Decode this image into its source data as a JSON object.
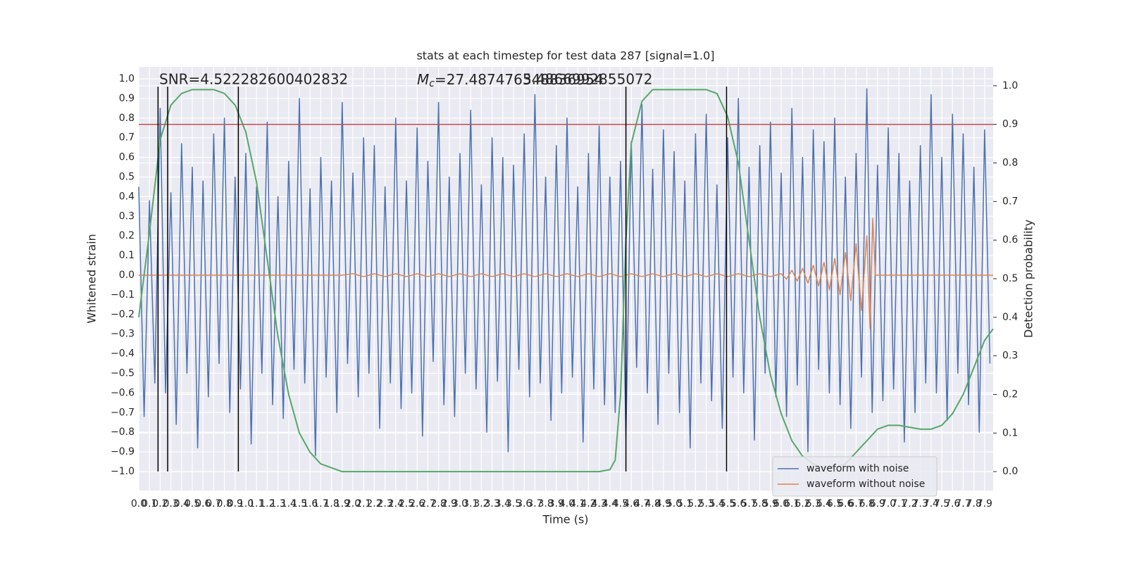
{
  "chart_data": {
    "type": "line",
    "title": "stats at each timestep for test data 287 [signal=1.0]",
    "xlabel": "Time (s)",
    "ylabel": "Whitened strain",
    "y2label": "Detection probability",
    "xlim": [
      0,
      7.98
    ],
    "ylim": [
      -1.097,
      1.061
    ],
    "y2lim": [
      -0.049,
      1.049
    ],
    "grid": true,
    "legend": "lower right",
    "xticks": [
      {
        "value": 0,
        "label": "0.0"
      },
      0.1,
      0.2,
      0.3,
      0.4,
      0.5,
      0.6,
      0.7,
      0.8,
      0.9,
      {
        "value": 1,
        "label": "1.0"
      },
      1.1,
      1.2,
      1.3,
      1.4,
      1.5,
      1.6,
      1.7,
      1.8,
      1.9,
      {
        "value": 2,
        "label": "2.0"
      },
      2.1,
      2.2,
      2.3,
      2.4,
      2.5,
      2.6,
      2.7,
      2.8,
      2.9,
      {
        "value": 3,
        "label": "3.0"
      },
      3.1,
      3.2,
      3.3,
      3.4,
      3.5,
      3.6,
      3.7,
      3.8,
      3.9,
      {
        "value": 4,
        "label": "4.0"
      },
      4.1,
      4.2,
      4.3,
      4.4,
      4.5,
      4.6,
      4.7,
      4.8,
      4.9,
      {
        "value": 5,
        "label": "5.0"
      },
      5.1,
      5.2,
      5.3,
      5.4,
      5.5,
      5.6,
      5.7,
      5.8,
      5.9,
      {
        "value": 6,
        "label": "6.0"
      },
      6.1,
      6.2,
      6.3,
      6.4,
      6.5,
      6.6,
      6.7,
      6.8,
      6.9,
      {
        "value": 7,
        "label": "7.0"
      },
      7.1,
      7.2,
      7.3,
      7.4,
      7.5,
      7.6,
      7.7,
      7.8,
      7.9
    ],
    "yticks": [
      {
        "value": -1,
        "label": "−1.0"
      },
      {
        "value": -0.9,
        "label": "−0.9"
      },
      {
        "value": -0.8,
        "label": "−0.8"
      },
      {
        "value": -0.7,
        "label": "−0.7"
      },
      {
        "value": -0.6,
        "label": "−0.6"
      },
      {
        "value": -0.5,
        "label": "−0.5"
      },
      {
        "value": -0.4,
        "label": "−0.4"
      },
      {
        "value": -0.3,
        "label": "−0.3"
      },
      {
        "value": -0.2,
        "label": "−0.2"
      },
      {
        "value": -0.1,
        "label": "−0.1"
      },
      {
        "value": 0,
        "label": "0.0"
      },
      0.1,
      0.2,
      0.3,
      0.4,
      0.5,
      0.6,
      0.7,
      0.8,
      0.9,
      {
        "value": 1,
        "label": "1.0"
      }
    ],
    "y2ticks": [
      {
        "value": 0,
        "label": "0.0"
      },
      0.1,
      0.2,
      0.3,
      0.4,
      0.5,
      0.6,
      0.7,
      0.8,
      0.9,
      {
        "value": 1,
        "label": "1.0"
      }
    ],
    "series": [
      {
        "name": "waveform with noise",
        "color": "#4c72b0",
        "x": [
          0,
          0.05,
          0.1,
          0.15,
          0.2,
          0.25,
          0.3,
          0.35,
          0.4,
          0.45,
          0.5,
          0.55,
          0.6,
          0.65,
          0.7,
          0.75,
          0.8,
          0.85,
          0.9,
          0.95,
          1,
          1.05,
          1.1,
          1.15,
          1.2,
          1.25,
          1.3,
          1.35,
          1.4,
          1.45,
          1.5,
          1.55,
          1.6,
          1.65,
          1.7,
          1.75,
          1.8,
          1.85,
          1.9,
          1.95,
          2,
          2.05,
          2.1,
          2.15,
          2.2,
          2.25,
          2.3,
          2.35,
          2.4,
          2.45,
          2.5,
          2.55,
          2.6,
          2.65,
          2.7,
          2.75,
          2.8,
          2.85,
          2.9,
          2.95,
          3,
          3.05,
          3.1,
          3.15,
          3.2,
          3.25,
          3.3,
          3.35,
          3.4,
          3.45,
          3.5,
          3.55,
          3.6,
          3.65,
          3.7,
          3.75,
          3.8,
          3.85,
          3.9,
          3.95,
          4,
          4.05,
          4.1,
          4.15,
          4.2,
          4.25,
          4.3,
          4.35,
          4.4,
          4.45,
          4.5,
          4.55,
          4.6,
          4.65,
          4.7,
          4.75,
          4.8,
          4.85,
          4.9,
          4.95,
          5,
          5.05,
          5.1,
          5.15,
          5.2,
          5.25,
          5.3,
          5.35,
          5.4,
          5.45,
          5.5,
          5.55,
          5.6,
          5.65,
          5.7,
          5.75,
          5.8,
          5.85,
          5.9,
          5.95,
          6,
          6.05,
          6.1,
          6.15,
          6.2,
          6.25,
          6.3,
          6.35,
          6.4,
          6.45,
          6.5,
          6.55,
          6.6,
          6.65,
          6.7,
          6.75,
          6.8,
          6.85,
          6.9,
          6.95,
          7,
          7.05,
          7.1,
          7.15,
          7.2,
          7.25,
          7.3,
          7.35,
          7.4,
          7.45,
          7.5,
          7.55,
          7.6,
          7.65,
          7.7,
          7.75,
          7.8,
          7.85,
          7.9,
          7.95
        ],
        "values": [
          0.45,
          -0.72,
          0.38,
          -0.55,
          0.85,
          -0.6,
          0.42,
          -0.76,
          0.67,
          -0.5,
          0.55,
          -0.88,
          0.48,
          -0.62,
          0.72,
          -0.45,
          0.8,
          -0.7,
          0.5,
          -0.58,
          0.62,
          -0.86,
          0.45,
          -0.5,
          0.78,
          -0.66,
          0.4,
          -0.73,
          0.58,
          -0.48,
          0.9,
          -0.55,
          0.44,
          -0.92,
          0.6,
          -0.52,
          0.48,
          -0.7,
          0.88,
          -0.45,
          0.52,
          -0.62,
          0.7,
          -0.5,
          0.66,
          -0.78,
          0.45,
          -0.55,
          0.8,
          -0.68,
          0.48,
          -0.6,
          0.75,
          -0.82,
          0.58,
          -0.44,
          0.88,
          -0.66,
          0.5,
          -0.72,
          0.62,
          -0.5,
          0.84,
          -0.58,
          0.46,
          -0.8,
          0.7,
          -0.54,
          0.6,
          -0.9,
          0.56,
          -0.48,
          0.72,
          -0.62,
          0.92,
          -0.55,
          0.5,
          -0.74,
          0.66,
          -0.6,
          0.8,
          -0.52,
          0.45,
          -0.85,
          0.62,
          -0.58,
          0.76,
          -0.66,
          0.5,
          -0.7,
          0.58,
          -0.82,
          0.68,
          -0.47,
          0.87,
          -0.6,
          0.54,
          -0.76,
          0.74,
          -0.5,
          0.63,
          -0.7,
          0.48,
          -0.88,
          0.72,
          -0.55,
          0.82,
          -0.64,
          0.46,
          -0.78,
          0.7,
          -0.52,
          0.9,
          -0.6,
          0.55,
          -0.84,
          0.66,
          -0.5,
          0.78,
          -0.62,
          0.52,
          -0.72,
          0.85,
          -0.56,
          0.6,
          -0.9,
          0.74,
          -0.48,
          0.68,
          -0.6,
          0.8,
          -0.66,
          0.5,
          -0.78,
          0.62,
          -0.52,
          0.95,
          -0.7,
          0.56,
          -0.64,
          0.75,
          -0.58,
          0.62,
          -0.85,
          0.48,
          -0.7,
          0.66,
          -0.55,
          0.92,
          -0.6,
          0.6,
          -0.74,
          0.82,
          -0.5,
          0.72,
          -0.66,
          0.55,
          -0.8,
          0.74,
          -0.45
        ]
      },
      {
        "name": "waveform without noise",
        "color": "#dd8452",
        "x": [
          0,
          1.9,
          2,
          2.1,
          2.2,
          2.3,
          2.4,
          2.5,
          2.6,
          2.7,
          2.8,
          2.9,
          3,
          3.1,
          3.2,
          3.3,
          3.4,
          3.5,
          3.6,
          3.7,
          3.8,
          3.9,
          4,
          4.1,
          4.2,
          4.3,
          4.4,
          4.5,
          4.6,
          4.7,
          4.8,
          4.9,
          5,
          5.1,
          5.2,
          5.3,
          5.4,
          5.5,
          5.6,
          5.7,
          5.8,
          5.9,
          6,
          6.05,
          6.1,
          6.15,
          6.2,
          6.25,
          6.3,
          6.35,
          6.4,
          6.45,
          6.5,
          6.55,
          6.6,
          6.65,
          6.7,
          6.75,
          6.8,
          6.83,
          6.855,
          6.88,
          7.98
        ],
        "values": [
          0,
          0,
          0.007,
          -0.007,
          0.007,
          -0.007,
          0.007,
          -0.007,
          0.007,
          -0.007,
          0.007,
          -0.007,
          0.007,
          -0.007,
          0.007,
          -0.007,
          0.007,
          -0.007,
          0.007,
          -0.007,
          0.007,
          -0.007,
          0.007,
          -0.007,
          0.007,
          -0.007,
          0.007,
          -0.007,
          0.007,
          -0.007,
          0.007,
          -0.007,
          0.007,
          -0.007,
          0.007,
          -0.007,
          0.007,
          -0.007,
          0.007,
          -0.007,
          0.007,
          -0.007,
          0.007,
          -0.02,
          0.025,
          -0.03,
          0.035,
          -0.04,
          0.05,
          -0.055,
          0.065,
          -0.075,
          0.085,
          -0.1,
          0.115,
          -0.13,
          0.16,
          -0.18,
          0.2,
          -0.27,
          0.29,
          0,
          0
        ]
      },
      {
        "color": "#55a868",
        "axis": "y2",
        "x": [
          0,
          0.1,
          0.2,
          0.3,
          0.4,
          0.5,
          0.6,
          0.7,
          0.8,
          0.9,
          1,
          1.1,
          1.2,
          1.3,
          1.4,
          1.5,
          1.6,
          1.7,
          1.8,
          1.9,
          4.3,
          4.4,
          4.45,
          4.5,
          4.55,
          4.6,
          4.7,
          4.8,
          5.3,
          5.4,
          5.5,
          5.6,
          5.7,
          5.8,
          5.9,
          6,
          6.1,
          6.2,
          6.3,
          6.4,
          6.5,
          6.6,
          6.7,
          6.8,
          6.9,
          7,
          7.1,
          7.2,
          7.3,
          7.4,
          7.5,
          7.6,
          7.7,
          7.8,
          7.9,
          7.98
        ],
        "values": [
          0.4,
          0.62,
          0.86,
          0.95,
          0.98,
          0.99,
          0.99,
          0.99,
          0.98,
          0.95,
          0.88,
          0.75,
          0.55,
          0.35,
          0.2,
          0.1,
          0.05,
          0.02,
          0.01,
          0,
          0,
          0.005,
          0.03,
          0.2,
          0.6,
          0.85,
          0.96,
          0.99,
          0.99,
          0.98,
          0.92,
          0.8,
          0.6,
          0.4,
          0.25,
          0.15,
          0.08,
          0.04,
          0.02,
          0.01,
          0.01,
          0.02,
          0.05,
          0.08,
          0.11,
          0.12,
          0.12,
          0.115,
          0.11,
          0.11,
          0.12,
          0.15,
          0.2,
          0.27,
          0.34,
          0.37
        ]
      }
    ],
    "hlines": [
      {
        "value": 0.9,
        "axis": "y2",
        "color": "#c44e52"
      }
    ],
    "vlines": {
      "x": [
        0.18,
        0.27,
        0.93,
        4.55,
        5.49
      ],
      "ymin": -1.0,
      "ymax": 0.96,
      "color": "#000000"
    },
    "annotations": [
      {
        "text": "SNR=4.522282600402832"
      },
      {
        "symbol": "M",
        "subscript": "c",
        "text": "=27.487476348836954"
      },
      {
        "text": "5.4866992855072"
      }
    ]
  }
}
